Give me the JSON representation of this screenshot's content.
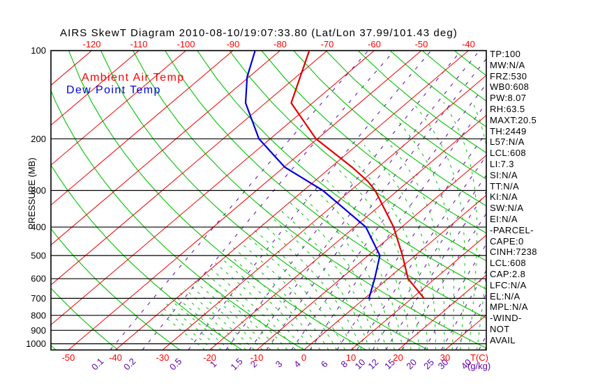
{
  "title": "AIRS SkewT Diagram 2010-08-10/19:07:33.80 (Lat/Lon 37.99/101.43 deg)",
  "legend": {
    "ambient_label": "Ambient Air Temp",
    "dewpoint_label": "Dew Point Temp"
  },
  "axes": {
    "y_label": "PRESSURE (MB)",
    "pressure_ticks": [
      100,
      200,
      300,
      400,
      500,
      600,
      700,
      800,
      900,
      1000
    ],
    "pressure_range_mb": [
      100,
      1050
    ],
    "top_temp_ticks_c": [
      -120,
      -110,
      -100,
      -90,
      -80,
      -70,
      -60,
      -50,
      -40
    ],
    "bottom_temp_ticks_c": [
      -50,
      -40,
      -30,
      -20,
      -10,
      0,
      10,
      20,
      30
    ],
    "temp_unit_label": "T(C)",
    "mixing_ratio_ticks_gkg": [
      0.1,
      0.2,
      0.5,
      1,
      1.5,
      2,
      3,
      4,
      6,
      8,
      10,
      12,
      15,
      20,
      25,
      30,
      40
    ],
    "mixing_ratio_unit_label": "(g/kg)"
  },
  "stats_panel": {
    "lines": [
      "TP:100",
      "MW:N/A",
      "FRZ:530",
      "WB0:608",
      "PW:8.07",
      "RH:63.5",
      "MAXT:20.5",
      "TH:2449",
      "L57:N/A",
      "LCL:608",
      "LI:7.3",
      "SI:N/A",
      "TT:N/A",
      "KI:N/A",
      "SW:N/A",
      "EI:N/A",
      "-PARCEL-",
      "CAPE:0",
      "CINH:7238",
      "LCL:608",
      "CAP:2.8",
      "LFC:N/A",
      "EL:N/A",
      "MPL:N/A",
      "-WIND-",
      "NOT",
      "AVAIL"
    ]
  },
  "colors": {
    "isotherm": "#ee0000",
    "label_red": "#ff0000",
    "adiabat_green": "#00c300",
    "mixing_purple": "#5b00aa",
    "ambient": "#e00000",
    "dewpoint": "#0000d9",
    "grid_black": "#000000"
  },
  "chart_data": {
    "type": "line",
    "title": "AIRS SkewT Diagram 2010-08-10/19:07:33.80 (Lat/Lon 37.99/101.43 deg)",
    "xlabel": "T(C)",
    "ylabel": "PRESSURE (MB)",
    "y_scale": "log",
    "x_axis_skewed": true,
    "pressure_range_mb": [
      100,
      1050
    ],
    "isotherm_range_c": {
      "min": -160,
      "max": 40,
      "step": 10
    },
    "background_line_families": [
      {
        "name": "isotherms",
        "style": "solid red"
      },
      {
        "name": "dry-adiabats",
        "style": "solid green"
      },
      {
        "name": "moist-adiabats",
        "style": "dashed green"
      },
      {
        "name": "mixing-ratio",
        "style": "dashed purple",
        "values_gkg": [
          0.1,
          0.2,
          0.5,
          1,
          1.5,
          2,
          3,
          4,
          6,
          8,
          10,
          12,
          15,
          20,
          25,
          30,
          40
        ]
      }
    ],
    "series": [
      {
        "name": "Ambient Air Temp",
        "points_p_t": [
          [
            100,
            -73.8
          ],
          [
            121,
            -69.5
          ],
          [
            151,
            -64.5
          ],
          [
            200,
            -50.3
          ],
          [
            250,
            -35.5
          ],
          [
            279,
            -28.7
          ],
          [
            300,
            -24.8
          ],
          [
            400,
            -11.7
          ],
          [
            500,
            -2.7
          ],
          [
            600,
            4.3
          ],
          [
            700,
            12.6
          ]
        ]
      },
      {
        "name": "Dew Point Temp",
        "points_p_t": [
          [
            100,
            -85.3
          ],
          [
            123,
            -80.4
          ],
          [
            151,
            -74.2
          ],
          [
            200,
            -62.4
          ],
          [
            250,
            -49.8
          ],
          [
            300,
            -35.9
          ],
          [
            400,
            -17.6
          ],
          [
            500,
            -7.5
          ],
          [
            600,
            -2.8
          ],
          [
            700,
            0.9
          ]
        ]
      }
    ]
  }
}
